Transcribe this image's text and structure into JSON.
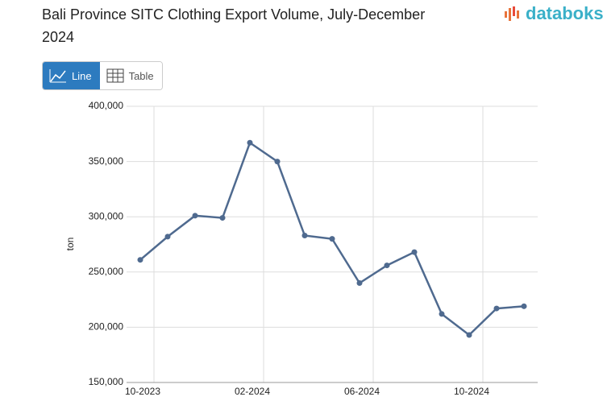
{
  "header": {
    "title": "Bali Province SITC Clothing Export Volume, July-December 2024",
    "logo": "databoks",
    "buttons": [
      "Line",
      "Table"
    ]
  },
  "chart_data": {
    "type": "line",
    "y_label": "ton",
    "categories": [
      null,
      "10-2023",
      null,
      null,
      null,
      "02-2024",
      null,
      null,
      null,
      "06-2024",
      null,
      null,
      null,
      "10-2024",
      null
    ],
    "series": [
      {
        "name": "ton",
        "color": "#4f6a8f",
        "values": [
          261000,
          282000,
          301000,
          299000,
          367000,
          350000,
          283000,
          280000,
          240000,
          256000,
          268000,
          212000,
          193000,
          217000,
          219000
        ]
      }
    ],
    "ylim": [
      150000,
      400000
    ],
    "yticks": [
      {
        "value": 150000,
        "label": "150,000"
      },
      {
        "value": 200000,
        "label": "200,000"
      },
      {
        "value": 250000,
        "label": "250,000"
      },
      {
        "value": 300000,
        "label": "300,000"
      },
      {
        "value": 350000,
        "label": "350,000"
      },
      {
        "value": 400000,
        "label": "400,000"
      }
    ],
    "grid": true
  }
}
